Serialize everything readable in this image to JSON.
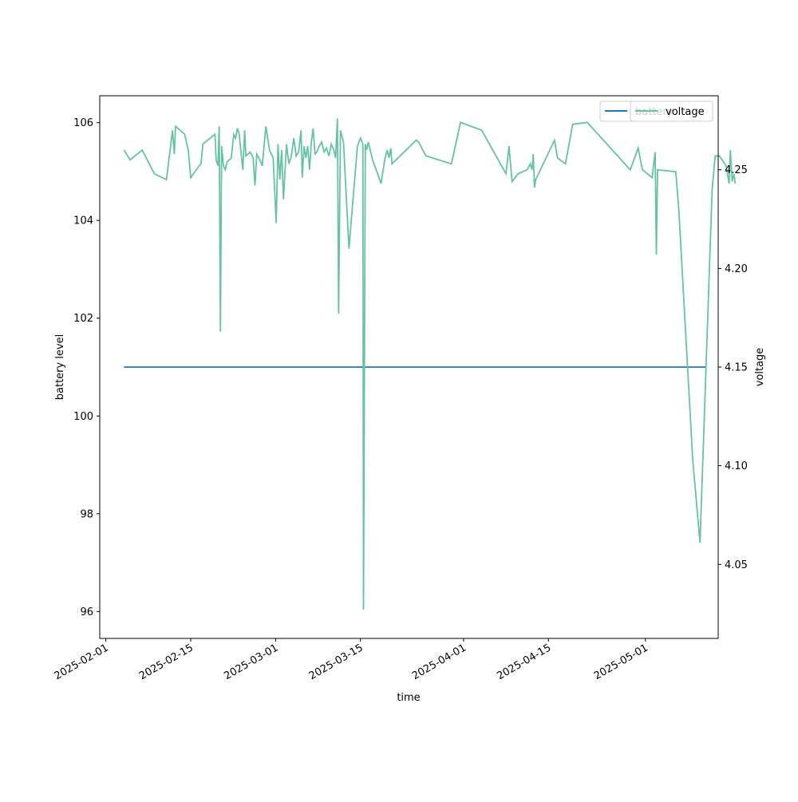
{
  "chart_data": {
    "type": "line",
    "title": "",
    "xlabel": "time",
    "ylabel": "battery level",
    "y2label": "voltage",
    "x_ticks": [
      "2025-02-01",
      "2025-02-15",
      "2025-03-01",
      "2025-03-15",
      "2025-04-01",
      "2025-04-15",
      "2025-05-01"
    ],
    "xlim": [
      "2025-01-31",
      "2025-05-13"
    ],
    "y_ticks": [
      96,
      98,
      100,
      102,
      104,
      106
    ],
    "ylim": [
      95.45,
      106.55
    ],
    "y2_ticks": [
      "4.05",
      "4.10",
      "4.15",
      "4.20",
      "4.25"
    ],
    "y2lim": [
      4.0125,
      4.2875
    ],
    "grid": false,
    "legends": [
      {
        "placement": "upper-right",
        "entries": [
          "battery"
        ]
      },
      {
        "placement": "upper-right",
        "entries": [
          "voltage"
        ]
      }
    ],
    "series": [
      {
        "name": "battery",
        "axis": "left",
        "color": "#1f77b4",
        "points": [
          [
            "2025-02-04",
            101
          ],
          [
            "2025-05-11",
            101
          ]
        ]
      },
      {
        "name": "voltage",
        "axis": "right",
        "color": "#66c2a5",
        "points": [
          [
            "2025-02-04",
            4.26
          ],
          [
            "2025-02-05",
            4.255
          ],
          [
            "2025-02-07",
            4.26
          ],
          [
            "2025-02-09",
            4.248
          ],
          [
            "2025-02-11",
            4.245
          ],
          [
            "2025-02-12",
            4.27
          ],
          [
            "2025-02-12.3",
            4.258
          ],
          [
            "2025-02-12.5",
            4.272
          ],
          [
            "2025-02-14",
            4.268
          ],
          [
            "2025-02-14.6",
            4.26
          ],
          [
            "2025-02-15",
            4.246
          ],
          [
            "2025-02-16.4",
            4.252
          ],
          [
            "2025-02-16.7",
            4.253
          ],
          [
            "2025-02-17",
            4.263
          ],
          [
            "2025-02-19",
            4.268
          ],
          [
            "2025-02-19.2",
            4.255
          ],
          [
            "2025-02-19.5",
            4.252
          ],
          [
            "2025-02-19.7",
            4.272
          ],
          [
            "2025-02-19.9",
            4.168
          ],
          [
            "2025-02-20.1",
            4.262
          ],
          [
            "2025-02-20.4",
            4.252
          ],
          [
            "2025-02-20.7",
            4.25
          ],
          [
            "2025-02-21",
            4.254
          ],
          [
            "2025-02-21.7",
            4.256
          ],
          [
            "2025-02-22.1",
            4.268
          ],
          [
            "2025-02-22.4",
            4.266
          ],
          [
            "2025-02-22.7",
            4.271
          ],
          [
            "2025-02-23",
            4.268
          ],
          [
            "2025-02-23.6",
            4.25
          ],
          [
            "2025-02-23.9",
            4.27
          ],
          [
            "2025-02-24.1",
            4.257
          ],
          [
            "2025-02-24.5",
            4.258
          ],
          [
            "2025-02-24.8",
            4.259
          ],
          [
            "2025-02-25.3",
            4.256
          ],
          [
            "2025-02-25.6",
            4.242
          ],
          [
            "2025-02-25.9",
            4.258
          ],
          [
            "2025-02-26.4",
            4.255
          ],
          [
            "2025-02-26.8",
            4.252
          ],
          [
            "2025-02-27.4",
            4.272
          ],
          [
            "2025-02-28",
            4.26
          ],
          [
            "2025-02-28.6",
            4.256
          ],
          [
            "2025-03-01.1",
            4.223
          ],
          [
            "2025-03-01.4",
            4.263
          ],
          [
            "2025-03-01.7",
            4.245
          ],
          [
            "2025-03-02",
            4.26
          ],
          [
            "2025-03-02.3",
            4.235
          ],
          [
            "2025-03-02.8",
            4.263
          ],
          [
            "2025-03-03.2",
            4.253
          ],
          [
            "2025-03-03.6",
            4.257
          ],
          [
            "2025-03-04",
            4.266
          ],
          [
            "2025-03-04.4",
            4.257
          ],
          [
            "2025-03-04.8",
            4.259
          ],
          [
            "2025-03-05.2",
            4.27
          ],
          [
            "2025-03-05.4",
            4.246
          ],
          [
            "2025-03-05.7",
            4.262
          ],
          [
            "2025-03-06",
            4.256
          ],
          [
            "2025-03-06.3",
            4.262
          ],
          [
            "2025-03-06.6",
            4.25
          ],
          [
            "2025-03-06.9",
            4.264
          ],
          [
            "2025-03-07.2",
            4.271
          ],
          [
            "2025-03-07.5",
            4.258
          ],
          [
            "2025-03-07.8",
            4.259
          ],
          [
            "2025-03-08.2",
            4.262
          ],
          [
            "2025-03-08.6",
            4.264
          ],
          [
            "2025-03-09",
            4.259
          ],
          [
            "2025-03-09.4",
            4.261
          ],
          [
            "2025-03-09.8",
            4.257
          ],
          [
            "2025-03-10.2",
            4.263
          ],
          [
            "2025-03-10.6",
            4.26
          ],
          [
            "2025-03-10.9",
            4.256
          ],
          [
            "2025-03-11.2",
            4.276
          ],
          [
            "2025-03-11.4",
            4.177
          ],
          [
            "2025-03-11.7",
            4.27
          ],
          [
            "2025-03-12.2",
            4.264
          ],
          [
            "2025-03-13.1",
            4.21
          ],
          [
            "2025-03-14.5",
            4.262
          ],
          [
            "2025-03-15",
            4.266
          ],
          [
            "2025-03-15.4",
            4.263
          ],
          [
            "2025-03-15.5",
            4.027
          ],
          [
            "2025-03-15.8",
            4.263
          ],
          [
            "2025-03-16",
            4.26
          ],
          [
            "2025-03-16.3",
            4.264
          ],
          [
            "2025-03-17",
            4.255
          ],
          [
            "2025-03-18.4",
            4.243
          ],
          [
            "2025-03-19",
            4.255
          ],
          [
            "2025-03-19.4",
            4.26
          ],
          [
            "2025-03-19.7",
            4.256
          ],
          [
            "2025-03-20",
            4.261
          ],
          [
            "2025-03-20.2",
            4.253
          ],
          [
            "2025-03-24.2",
            4.265
          ],
          [
            "2025-03-24.6",
            4.264
          ],
          [
            "2025-03-25.8",
            4.257
          ],
          [
            "2025-03-30",
            4.253
          ],
          [
            "2025-03-31.5",
            4.274
          ],
          [
            "2025-04-04",
            4.27
          ],
          [
            "2025-04-08",
            4.248
          ],
          [
            "2025-04-08.5",
            4.262
          ],
          [
            "2025-04-09",
            4.244
          ],
          [
            "2025-04-10",
            4.248
          ],
          [
            "2025-04-11.5",
            4.25
          ],
          [
            "2025-04-12",
            4.253
          ],
          [
            "2025-04-12.3",
            4.25
          ],
          [
            "2025-04-12.5",
            4.258
          ],
          [
            "2025-04-12.7",
            4.241
          ],
          [
            "2025-04-12.9",
            4.245
          ],
          [
            "2025-04-16",
            4.265
          ],
          [
            "2025-04-16.5",
            4.256
          ],
          [
            "2025-04-17.8",
            4.253
          ],
          [
            "2025-04-19",
            4.273
          ],
          [
            "2025-04-21.4",
            4.274
          ],
          [
            "2025-04-28.5",
            4.25
          ],
          [
            "2025-04-29.8",
            4.261
          ],
          [
            "2025-04-30.5",
            4.25
          ],
          [
            "2025-05-02.1",
            4.246
          ],
          [
            "2025-05-02.6",
            4.259
          ],
          [
            "2025-05-02.8",
            4.207
          ],
          [
            "2025-05-03",
            4.25
          ],
          [
            "2025-05-06",
            4.249
          ],
          [
            "2025-05-06.5",
            4.23
          ],
          [
            "2025-05-08.8",
            4.103
          ],
          [
            "2025-05-10",
            4.061
          ],
          [
            "2025-05-12",
            4.24
          ],
          [
            "2025-05-12.5",
            4.257
          ],
          [
            "2025-05-13.2",
            4.257
          ],
          [
            "2025-05-14.3",
            4.252
          ],
          [
            "2025-05-14.8",
            4.243
          ],
          [
            "2025-05-15",
            4.26
          ],
          [
            "2025-05-15.3",
            4.244
          ],
          [
            "2025-05-15.6",
            4.248
          ],
          [
            "2025-05-15.8",
            4.243
          ]
        ]
      }
    ]
  }
}
